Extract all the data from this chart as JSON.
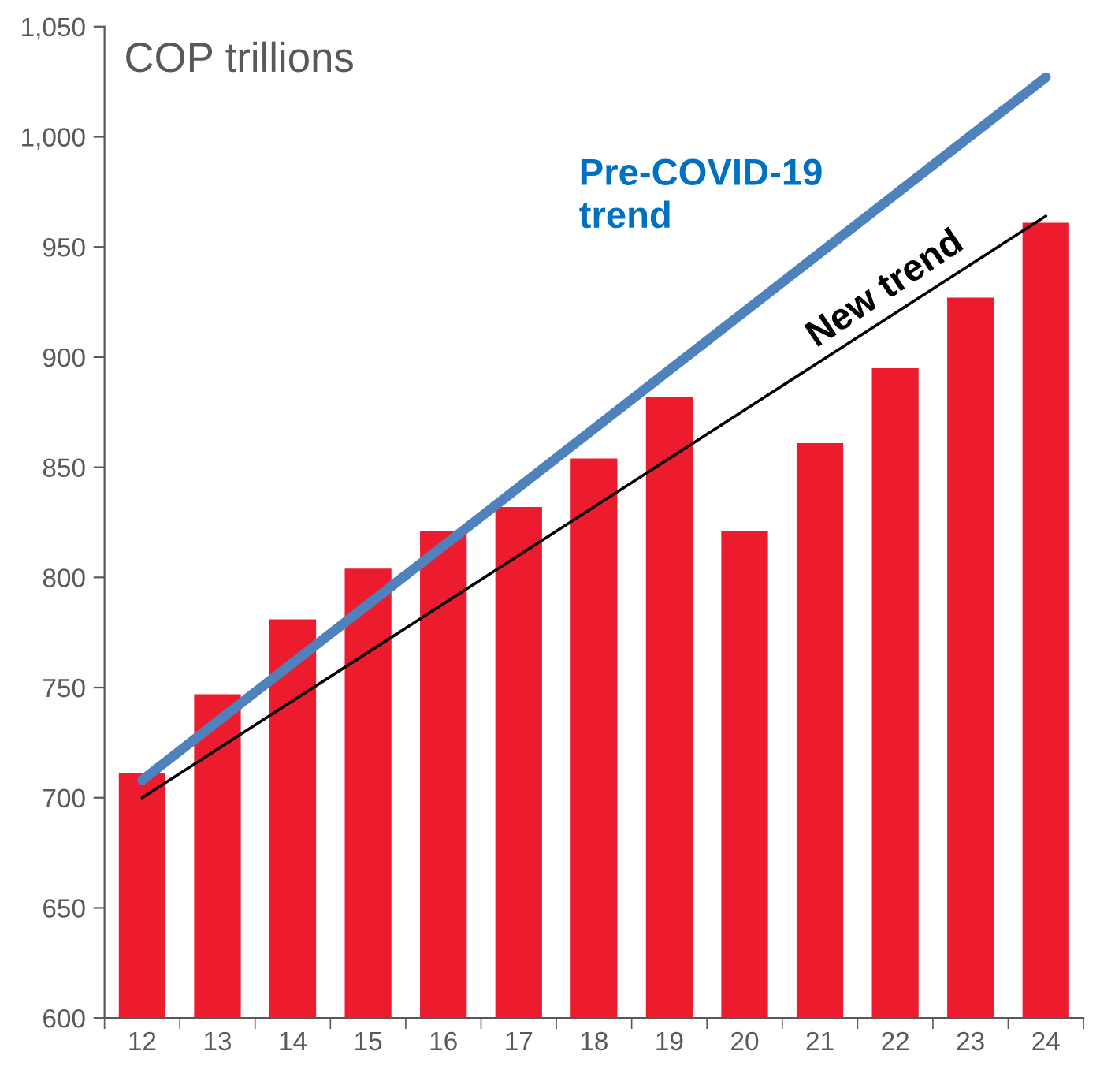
{
  "chart_data": {
    "type": "bar",
    "title": "COP trillions",
    "categories": [
      "12",
      "13",
      "14",
      "15",
      "16",
      "17",
      "18",
      "19",
      "20",
      "21",
      "22",
      "23",
      "24"
    ],
    "series": [
      {
        "color": "#ec1c2e",
        "values": [
          711,
          747,
          781,
          804,
          821,
          832,
          854,
          882,
          821,
          861,
          895,
          927,
          961
        ]
      },
      {
        "type": "line",
        "name": "Pre-COVID-19\ntrend",
        "color": "#4f81bd",
        "x": [
          "12",
          "24"
        ],
        "values": [
          708,
          1027
        ]
      },
      {
        "type": "line",
        "name": "New trend",
        "color": "#000000",
        "x": [
          "12",
          "24"
        ],
        "values": [
          700,
          964
        ]
      }
    ],
    "ylim": [
      600,
      1050
    ],
    "yticks": [
      600,
      650,
      700,
      750,
      800,
      850,
      900,
      950,
      {
        "value": 1000,
        "label": "1,000"
      },
      {
        "value": 1050,
        "label": "1,050"
      }
    ],
    "grid": false,
    "legend": false
  }
}
